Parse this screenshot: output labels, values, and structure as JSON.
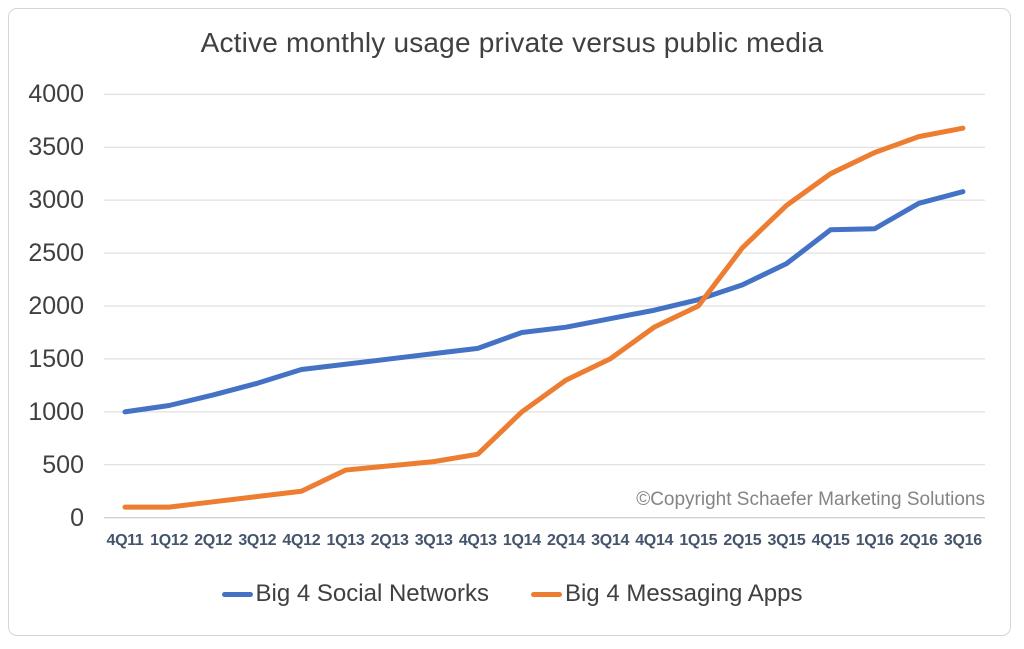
{
  "chart_data": {
    "type": "line",
    "title": "Active monthly usage private versus public media",
    "annotation": "©Copyright Schaefer Marketing Solutions",
    "categories": [
      "4Q11",
      "1Q12",
      "2Q12",
      "3Q12",
      "4Q12",
      "1Q13",
      "2Q13",
      "3Q13",
      "4Q13",
      "1Q14",
      "2Q14",
      "3Q14",
      "4Q14",
      "1Q15",
      "2Q15",
      "3Q15",
      "4Q15",
      "1Q16",
      "2Q16",
      "3Q16"
    ],
    "series": [
      {
        "name": "Big 4 Social Networks",
        "color": "#4472C4",
        "values": [
          1000,
          1060,
          1160,
          1270,
          1400,
          1450,
          1500,
          1550,
          1600,
          1750,
          1800,
          1880,
          1960,
          2060,
          2200,
          2400,
          2720,
          2730,
          2970,
          3080
        ]
      },
      {
        "name": "Big 4 Messaging Apps",
        "color": "#ED7D31",
        "values": [
          100,
          100,
          150,
          200,
          250,
          450,
          490,
          530,
          600,
          1000,
          1300,
          1500,
          1800,
          2000,
          2550,
          2950,
          3250,
          3450,
          3600,
          3680
        ]
      }
    ],
    "ylim": [
      0,
      4000
    ],
    "yticks": [
      0,
      500,
      1000,
      1500,
      2000,
      2500,
      3000,
      3500,
      4000
    ],
    "grid": true,
    "legend_position": "bottom"
  },
  "style": {
    "gridline_color": "#d9d9d9",
    "zero_axis_color": "#c0c0c0",
    "title_color": "#404040",
    "ytick_color": "#404040",
    "xtick_color": "#44546a",
    "copyright_color": "#848484",
    "frame_border_color": "#d6d6d6",
    "line_width": 5
  }
}
